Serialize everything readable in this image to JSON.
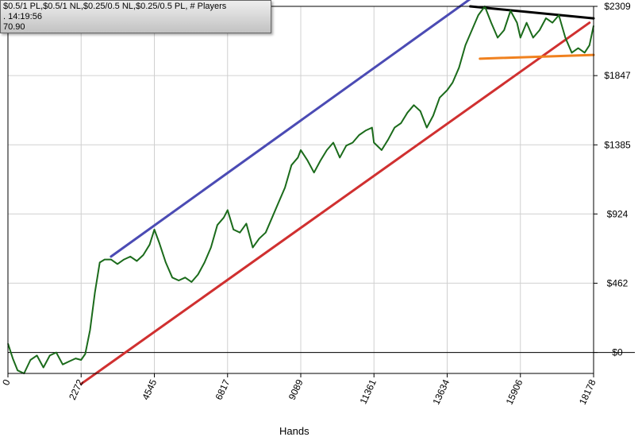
{
  "info_box": {
    "line1": "$0.5/1 PL,$0.5/1 NL,$0.25/0.5 NL,$0.25/0.5 PL, # Players",
    "line2": ". 14:19:56",
    "line3": "70.90"
  },
  "chart_data": {
    "type": "line",
    "xlabel": "Hands",
    "ylabel": "",
    "xlim": [
      0,
      18178
    ],
    "ylim": [
      -140,
      2309
    ],
    "x_ticks": [
      0,
      2272,
      4545,
      6817,
      9089,
      11361,
      13634,
      15906,
      18178
    ],
    "x_tick_labels": [
      "0",
      "2272",
      "4545",
      "6817",
      "9089",
      "11361",
      "13634",
      "15906",
      "18178"
    ],
    "y_ticks": [
      2309,
      1847,
      1385,
      924,
      462,
      0
    ],
    "y_tick_labels": [
      "$2309",
      "$1847",
      "$1385",
      "$924",
      "$462",
      "$0"
    ],
    "grid": true,
    "series": [
      {
        "color": "#1b6b1b",
        "x": [
          0,
          150,
          300,
          500,
          700,
          900,
          1100,
          1300,
          1500,
          1700,
          1900,
          2100,
          2272,
          2400,
          2550,
          2700,
          2850,
          3000,
          3200,
          3400,
          3600,
          3800,
          4000,
          4200,
          4400,
          4545,
          4700,
          4900,
          5100,
          5300,
          5500,
          5700,
          5900,
          6100,
          6300,
          6500,
          6700,
          6817,
          7000,
          7200,
          7400,
          7600,
          7800,
          8000,
          8200,
          8400,
          8600,
          8800,
          9000,
          9089,
          9300,
          9500,
          9700,
          9900,
          10100,
          10300,
          10500,
          10700,
          10900,
          11100,
          11300,
          11361,
          11600,
          11800,
          12000,
          12200,
          12400,
          12600,
          12800,
          13000,
          13200,
          13400,
          13634,
          13800,
          14000,
          14200,
          14400,
          14600,
          14800,
          15000,
          15200,
          15400,
          15600,
          15800,
          15906,
          16100,
          16300,
          16500,
          16700,
          16900,
          17100,
          17300,
          17500,
          17700,
          17900,
          18050,
          18178
        ],
        "y": [
          60,
          -40,
          -120,
          -140,
          -50,
          -20,
          -100,
          -20,
          0,
          -80,
          -60,
          -40,
          -50,
          -10,
          150,
          400,
          600,
          620,
          620,
          590,
          620,
          640,
          610,
          650,
          720,
          820,
          730,
          600,
          500,
          480,
          500,
          470,
          520,
          600,
          700,
          850,
          900,
          950,
          820,
          800,
          860,
          700,
          760,
          800,
          900,
          1000,
          1100,
          1250,
          1300,
          1350,
          1280,
          1200,
          1280,
          1350,
          1400,
          1300,
          1380,
          1400,
          1450,
          1480,
          1500,
          1400,
          1350,
          1420,
          1500,
          1530,
          1600,
          1650,
          1610,
          1500,
          1580,
          1700,
          1750,
          1800,
          1900,
          2050,
          2150,
          2250,
          2309,
          2200,
          2100,
          2150,
          2280,
          2200,
          2100,
          2200,
          2100,
          2150,
          2230,
          2200,
          2250,
          2100,
          2000,
          2030,
          2000,
          2050,
          2180
        ]
      }
    ],
    "trend_lines": [
      {
        "color": "#4b4bb4",
        "x": [
          3200,
          14750
        ],
        "y": [
          640,
          2420
        ]
      },
      {
        "color": "#d03030",
        "x": [
          2272,
          18050
        ],
        "y": [
          -210,
          2200
        ]
      },
      {
        "color": "#000000",
        "x": [
          14350,
          18178
        ],
        "y": [
          2309,
          2229
        ]
      },
      {
        "color": "#f0811f",
        "x": [
          14650,
          18178
        ],
        "y": [
          1960,
          1985
        ]
      }
    ]
  }
}
